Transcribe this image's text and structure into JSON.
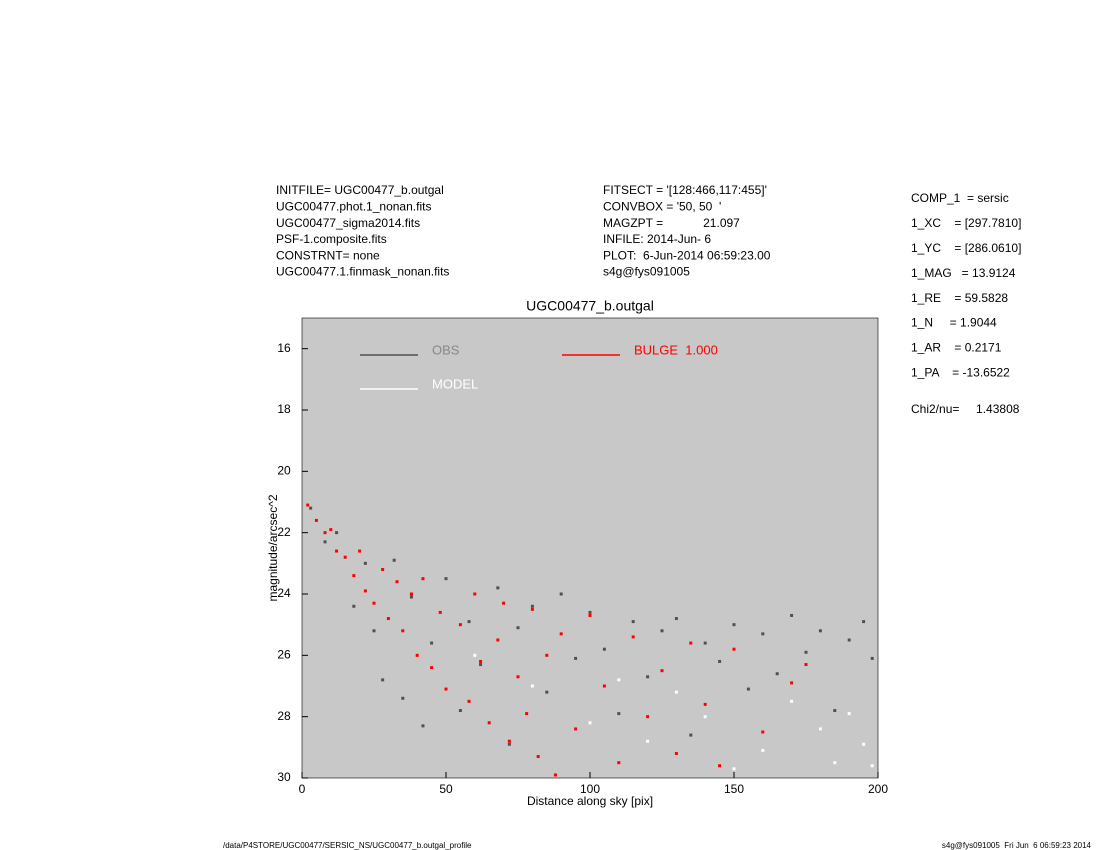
{
  "header": {
    "left": [
      "INITFILE= UGC00477_b.outgal",
      "UGC00477.phot.1_nonan.fits",
      "UGC00477_sigma2014.fits",
      "PSF-1.composite.fits",
      "CONSTRNT= none",
      "UGC00477.1.finmask_nonan.fits"
    ],
    "middle": [
      "FITSECT = '[128:466,117:455]'",
      "CONVBOX = '50, 50  '",
      "MAGZPT =            21.097",
      "INFILE: 2014-Jun- 6",
      "PLOT:  6-Jun-2014 06:59:23.00",
      "s4g@fys091005"
    ],
    "right": [
      "COMP_1  = sersic",
      "1_XC    = [297.7810]",
      "1_YC    = [286.0610]",
      "1_MAG   = 13.9124",
      "1_RE    = 59.5828",
      "1_N     = 1.9044",
      "1_AR    = 0.2171",
      "1_PA    = -13.6522"
    ],
    "chi2": "Chi2/nu=     1.43808"
  },
  "footer": {
    "left": "/data/P4STORE/UGC00477/SERSIC_NS/UGC00477_b.outgal_profile",
    "right": "s4g@fys091005  Fri Jun  6 06:59:23 2014"
  },
  "chart_data": {
    "type": "scatter",
    "title": "UGC00477_b.outgal",
    "x_label": "Distance along sky [pix]",
    "y_label": "magnitude/arcsec^2",
    "xlim": [
      0,
      200
    ],
    "xticks": [
      0,
      50,
      100,
      150,
      200
    ],
    "ylim": [
      15,
      30
    ],
    "yticks": [
      16,
      18,
      20,
      22,
      24,
      26,
      28,
      30
    ],
    "y_inverted": true,
    "background": "#c8c8c8",
    "series": [
      {
        "name": "OBS",
        "color": "#505050",
        "x": [
          3,
          8,
          12,
          18,
          22,
          25,
          28,
          32,
          35,
          38,
          42,
          45,
          50,
          55,
          58,
          62,
          68,
          72,
          75,
          80,
          85,
          90,
          95,
          100,
          105,
          110,
          115,
          120,
          125,
          130,
          135,
          140,
          145,
          150,
          155,
          160,
          165,
          170,
          175,
          180,
          185,
          190,
          195,
          198
        ],
        "values": [
          21.2,
          22.3,
          22.0,
          24.4,
          23.0,
          25.2,
          26.8,
          22.9,
          27.4,
          24.1,
          28.3,
          25.6,
          23.5,
          27.8,
          24.9,
          26.3,
          23.8,
          28.9,
          25.1,
          24.4,
          27.2,
          24.0,
          26.1,
          24.6,
          25.8,
          27.9,
          24.9,
          26.7,
          25.2,
          24.8,
          28.6,
          25.6,
          26.2,
          25.0,
          27.1,
          25.3,
          26.6,
          24.7,
          25.9,
          25.2,
          27.8,
          25.5,
          24.9,
          26.1
        ]
      },
      {
        "name": "MODEL",
        "color": "#ffffff",
        "x": [
          60,
          80,
          100,
          120,
          140,
          160,
          170,
          180,
          185,
          190,
          195,
          198,
          150,
          130,
          110
        ],
        "values": [
          26.0,
          27.0,
          28.2,
          28.8,
          28.0,
          29.1,
          27.5,
          28.4,
          29.5,
          27.9,
          28.9,
          29.6,
          29.7,
          27.2,
          26.8
        ]
      },
      {
        "name": "BULGE  1.000",
        "color": "#ff0000",
        "x": [
          2,
          5,
          8,
          10,
          12,
          15,
          18,
          20,
          22,
          25,
          28,
          30,
          33,
          35,
          38,
          40,
          42,
          45,
          48,
          50,
          55,
          58,
          60,
          62,
          65,
          68,
          70,
          72,
          75,
          78,
          80,
          82,
          85,
          88,
          90,
          95,
          100,
          105,
          110,
          115,
          120,
          125,
          130,
          135,
          140,
          145,
          150,
          160,
          170,
          175
        ],
        "values": [
          21.1,
          21.6,
          22.0,
          21.9,
          22.6,
          22.8,
          23.4,
          22.6,
          23.9,
          24.3,
          23.2,
          24.8,
          23.6,
          25.2,
          24.0,
          26.0,
          23.5,
          26.4,
          24.6,
          27.1,
          25.0,
          27.5,
          24.0,
          26.2,
          28.2,
          25.5,
          24.3,
          28.8,
          26.7,
          27.9,
          24.5,
          29.3,
          26.0,
          29.9,
          25.3,
          28.4,
          24.7,
          27.0,
          29.5,
          25.4,
          28.0,
          26.5,
          29.2,
          25.6,
          27.6,
          29.6,
          25.8,
          28.5,
          26.9,
          26.3
        ]
      }
    ]
  }
}
